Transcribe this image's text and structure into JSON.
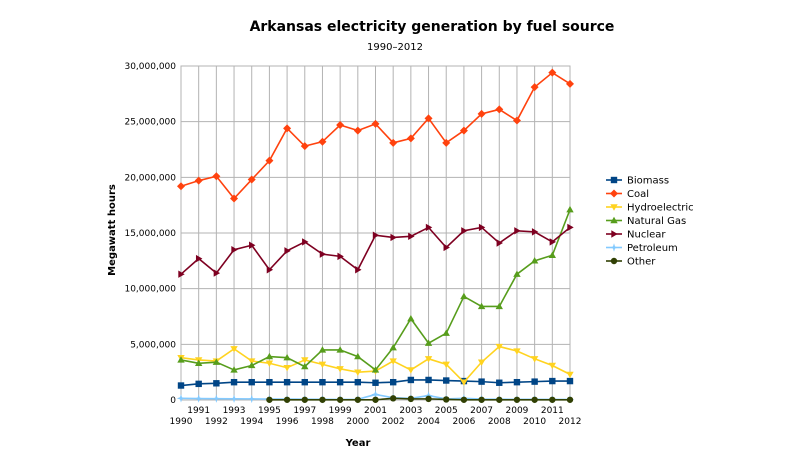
{
  "chart_data": {
    "type": "line",
    "title": "Arkansas electricity generation by fuel source",
    "subtitle": "1990–2012",
    "xlabel": "Year",
    "ylabel": "Megawatt hours",
    "ylim": [
      0,
      30000000
    ],
    "grid": true,
    "legend_position": "right",
    "y_ticks": [
      0,
      5000000,
      10000000,
      15000000,
      20000000,
      25000000,
      30000000
    ],
    "y_tick_labels": [
      "0",
      "5,000,000",
      "10,000,000",
      "15,000,000",
      "20,000,000",
      "25,000,000",
      "30,000,000"
    ],
    "x": [
      1990,
      1991,
      1992,
      1993,
      1994,
      1995,
      1996,
      1997,
      1998,
      1999,
      2000,
      2001,
      2002,
      2003,
      2004,
      2005,
      2006,
      2007,
      2008,
      2009,
      2010,
      2011,
      2012
    ],
    "x_tick_labels": [
      "1990",
      "1991",
      "1992",
      "1993",
      "1994",
      "1995",
      "1996",
      "1997",
      "1998",
      "1999",
      "2000",
      "2001",
      "2002",
      "2003",
      "2004",
      "2005",
      "2006",
      "2007",
      "2008",
      "2009",
      "2010",
      "2011",
      "2012"
    ],
    "series": [
      {
        "name": "Biomass",
        "color": "#004586",
        "marker": "square",
        "values": [
          1300000,
          1450000,
          1500000,
          1600000,
          1600000,
          1600000,
          1600000,
          1600000,
          1600000,
          1600000,
          1600000,
          1550000,
          1600000,
          1800000,
          1800000,
          1750000,
          1700000,
          1650000,
          1550000,
          1600000,
          1650000,
          1700000,
          1700000
        ]
      },
      {
        "name": "Coal",
        "color": "#ff420e",
        "marker": "diamond",
        "values": [
          19200000,
          19700000,
          20100000,
          18100000,
          19800000,
          21500000,
          24400000,
          22800000,
          23200000,
          24700000,
          24200000,
          24800000,
          23100000,
          23500000,
          25300000,
          23100000,
          24200000,
          25700000,
          26100000,
          25100000,
          28100000,
          29400000,
          28400000
        ]
      },
      {
        "name": "Hydroelectric",
        "color": "#ffd320",
        "marker": "triangle-down",
        "values": [
          3800000,
          3600000,
          3500000,
          4600000,
          3500000,
          3300000,
          2900000,
          3600000,
          3200000,
          2800000,
          2500000,
          2600000,
          3500000,
          2700000,
          3700000,
          3200000,
          1600000,
          3400000,
          4800000,
          4400000,
          3700000,
          3100000,
          2300000
        ]
      },
      {
        "name": "Natural Gas",
        "color": "#579d1c",
        "marker": "triangle-up",
        "values": [
          3600000,
          3300000,
          3400000,
          2700000,
          3100000,
          3900000,
          3800000,
          3000000,
          4500000,
          4500000,
          3900000,
          2700000,
          4700000,
          7300000,
          5100000,
          6000000,
          9300000,
          8400000,
          8400000,
          11300000,
          12500000,
          13000000,
          17100000
        ]
      },
      {
        "name": "Nuclear",
        "color": "#7e0021",
        "marker": "triangle-right",
        "values": [
          11300000,
          12700000,
          11400000,
          13500000,
          13900000,
          11700000,
          13400000,
          14200000,
          13100000,
          12900000,
          11700000,
          14800000,
          14600000,
          14700000,
          15500000,
          13700000,
          15200000,
          15500000,
          14100000,
          15200000,
          15100000,
          14200000,
          15500000
        ]
      },
      {
        "name": "Petroleum",
        "color": "#83caff",
        "marker": "star",
        "values": [
          150000,
          130000,
          120000,
          110000,
          100000,
          90000,
          80000,
          70000,
          60000,
          50000,
          60000,
          500000,
          200000,
          150000,
          400000,
          100000,
          150000,
          80000,
          70000,
          60000,
          60000,
          50000,
          50000
        ]
      },
      {
        "name": "Other",
        "color": "#314004",
        "marker": "circle",
        "values": [
          null,
          null,
          null,
          null,
          null,
          20000,
          20000,
          20000,
          20000,
          20000,
          20000,
          20000,
          150000,
          100000,
          100000,
          50000,
          20000,
          20000,
          20000,
          20000,
          20000,
          20000,
          20000
        ]
      }
    ]
  }
}
